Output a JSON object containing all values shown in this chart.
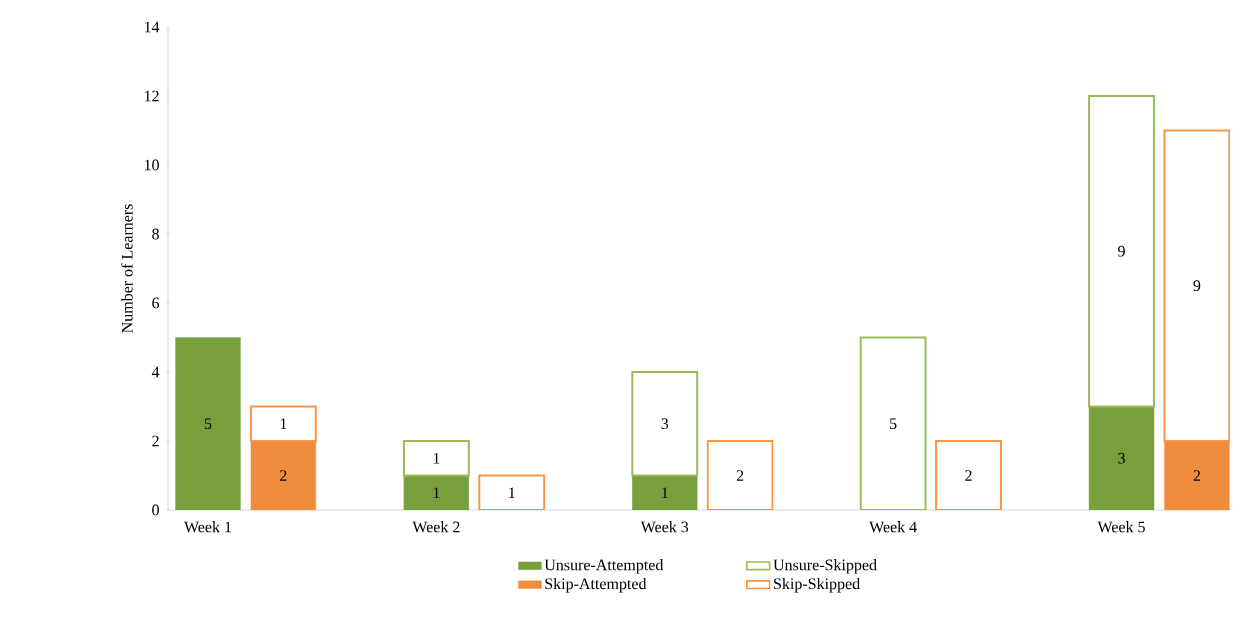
{
  "chart_data": {
    "type": "bar",
    "stacked": true,
    "categories": [
      "Week 1",
      null,
      "Week 2",
      null,
      "Week 3",
      null,
      "Week 4",
      null,
      "Week 5",
      null
    ],
    "ylabel": "Number of Learners",
    "ylim": [
      0,
      14
    ],
    "yticks": [
      0,
      2,
      4,
      6,
      8,
      10,
      12,
      14
    ],
    "legend": "bottom",
    "series": [
      {
        "name": "Unsure-Attempted",
        "color": "#77a03c",
        "values": [
          5,
          null,
          1,
          null,
          1,
          null,
          0,
          null,
          3,
          null
        ],
        "value_labels": [
          "5",
          null,
          "1",
          null,
          "1",
          null,
          null,
          null,
          "3",
          null
        ]
      },
      {
        "name": "Unsure-Skipped",
        "color": "#9bbb59",
        "values": [
          0,
          null,
          1,
          null,
          3,
          null,
          5,
          null,
          9,
          null
        ],
        "value_labels": [
          null,
          null,
          "1",
          null,
          "3",
          null,
          "5",
          null,
          "9",
          null
        ]
      },
      {
        "name": "Skip-Attempted",
        "color": "#f08c3c",
        "values": [
          null,
          2,
          null,
          0,
          null,
          0,
          null,
          0,
          null,
          2
        ],
        "value_labels": [
          null,
          "2",
          null,
          null,
          null,
          null,
          null,
          null,
          null,
          "2"
        ]
      },
      {
        "name": "Skip-Skipped",
        "color": "#f79646",
        "values": [
          null,
          1,
          null,
          1,
          null,
          2,
          null,
          2,
          null,
          9
        ],
        "value_labels": [
          null,
          "1",
          null,
          "1",
          null,
          "2",
          null,
          "2",
          null,
          "9"
        ]
      }
    ]
  }
}
